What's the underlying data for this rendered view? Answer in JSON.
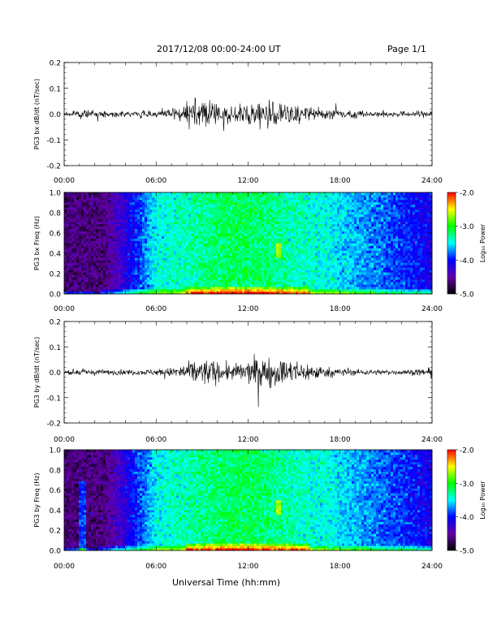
{
  "header": {
    "title": "2017/12/08  00:00-24:00 UT",
    "page": "Page 1/1"
  },
  "footer": {
    "xlabel": "Universal Time (hh:mm)"
  },
  "colorbar": {
    "ticks": [
      "-2.0",
      "-3.0",
      "-4.0",
      "-5.0"
    ],
    "label": "Log₁₀ Power",
    "colors": [
      "#ff0000",
      "#ffff00",
      "#00ff00",
      "#00ffff",
      "#0000ff",
      "#6600aa",
      "#000000"
    ]
  },
  "chart_data": [
    {
      "type": "line",
      "ylabel": "PG3 bx dB/dt (nT/sec)",
      "ylim": [
        -0.2,
        0.2
      ],
      "yticks": [
        "0.2",
        "0.1",
        "0.0",
        "-0.1",
        "-0.2"
      ],
      "xlim": [
        0,
        24
      ],
      "xticks": [
        "00:00",
        "06:00",
        "12:00",
        "18:00",
        "24:00"
      ],
      "series": [
        {
          "x": [
            0,
            1,
            2,
            3,
            4,
            5,
            6,
            7,
            8,
            9,
            10,
            11,
            12,
            13,
            14,
            15,
            16,
            17,
            18,
            19,
            20,
            21,
            22,
            23,
            24
          ],
          "amplitude": [
            0.008,
            0.015,
            0.012,
            0.01,
            0.01,
            0.012,
            0.015,
            0.02,
            0.04,
            0.055,
            0.045,
            0.03,
            0.05,
            0.06,
            0.045,
            0.04,
            0.025,
            0.02,
            0.02,
            0.015,
            0.012,
            0.01,
            0.01,
            0.012,
            0.015
          ]
        }
      ]
    },
    {
      "type": "heatmap",
      "ylabel": "PG3 bx Freq (Hz)",
      "ylim": [
        0.0,
        1.0
      ],
      "yticks": [
        "1.0",
        "0.8",
        "0.6",
        "0.4",
        "0.2",
        "0.0"
      ],
      "xlim": [
        0,
        24
      ],
      "xticks": [
        "00:00",
        "06:00",
        "12:00",
        "18:00",
        "24:00"
      ],
      "zlim": [
        -5.0,
        -2.0
      ],
      "zlabel": "Log₁₀ Power"
    },
    {
      "type": "line",
      "ylabel": "PG3 by dB/dt (nT/sec)",
      "ylim": [
        -0.2,
        0.2
      ],
      "yticks": [
        "0.2",
        "0.1",
        "0.0",
        "-0.1",
        "-0.2"
      ],
      "xlim": [
        0,
        24
      ],
      "xticks": [
        "00:00",
        "06:00",
        "12:00",
        "18:00",
        "24:00"
      ],
      "series": [
        {
          "x": [
            0,
            1,
            2,
            3,
            4,
            5,
            6,
            7,
            8,
            9,
            10,
            11,
            12,
            13,
            14,
            15,
            16,
            17,
            18,
            19,
            20,
            21,
            22,
            23,
            24
          ],
          "amplitude": [
            0.008,
            0.012,
            0.012,
            0.01,
            0.01,
            0.01,
            0.012,
            0.018,
            0.035,
            0.055,
            0.04,
            0.03,
            0.045,
            0.06,
            0.05,
            0.045,
            0.035,
            0.02,
            0.015,
            0.012,
            0.01,
            0.01,
            0.01,
            0.012,
            0.015
          ]
        }
      ]
    },
    {
      "type": "heatmap",
      "ylabel": "PG3 by Freq (Hz)",
      "ylim": [
        0.0,
        1.0
      ],
      "yticks": [
        "1.0",
        "0.8",
        "0.6",
        "0.4",
        "0.2",
        "0.0"
      ],
      "xlim": [
        0,
        24
      ],
      "xticks": [
        "00:00",
        "06:00",
        "12:00",
        "18:00",
        "24:00"
      ],
      "zlim": [
        -5.0,
        -2.0
      ],
      "zlabel": "Log₁₀ Power"
    }
  ]
}
